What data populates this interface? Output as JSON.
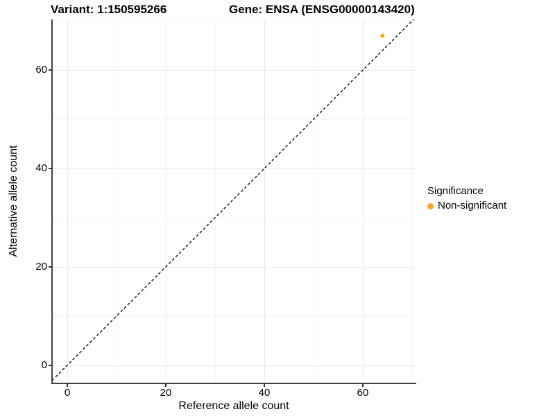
{
  "titles": {
    "variant": "Variant: 1:150595266",
    "gene": "Gene: ENSA (ENSG00000143420)"
  },
  "axes": {
    "x": {
      "label": "Reference allele count",
      "major_ticks": [
        0,
        20,
        40,
        60
      ],
      "minor_ticks": [
        10,
        30,
        50,
        70
      ]
    },
    "y": {
      "label": "Alternative allele count",
      "major_ticks": [
        0,
        20,
        40,
        60
      ],
      "minor_ticks": [
        10,
        30,
        50,
        70
      ]
    }
  },
  "legend": {
    "title": "Significance",
    "items": [
      {
        "label": "Non-significant",
        "color": "#FFA222"
      }
    ]
  },
  "chart_data": {
    "type": "scatter",
    "title": "Variant: 1:150595266 | Gene: ENSA (ENSG00000143420)",
    "xlabel": "Reference allele count",
    "ylabel": "Alternative allele count",
    "xlim": [
      -3.1,
      70.7
    ],
    "ylim": [
      -3.7,
      70.3
    ],
    "x_ticks": [
      0,
      20,
      40,
      60
    ],
    "y_ticks": [
      0,
      20,
      40,
      60
    ],
    "grid": true,
    "legend_position": "right",
    "series": [
      {
        "name": "Non-significant",
        "color": "#FFA222",
        "points": [
          {
            "x": 64,
            "y": 67
          }
        ]
      }
    ],
    "reference_line": {
      "kind": "identity y = x",
      "slope": 1,
      "intercept": 0,
      "style": "dashed",
      "color": "#000000"
    }
  },
  "style_colors": {
    "grid_major": "#E8E8E8",
    "grid_minor": "#F4F4F4",
    "axis_line": "#404040",
    "tick": "#333333",
    "point": "#FFA222",
    "background": "#FFFFFF"
  }
}
